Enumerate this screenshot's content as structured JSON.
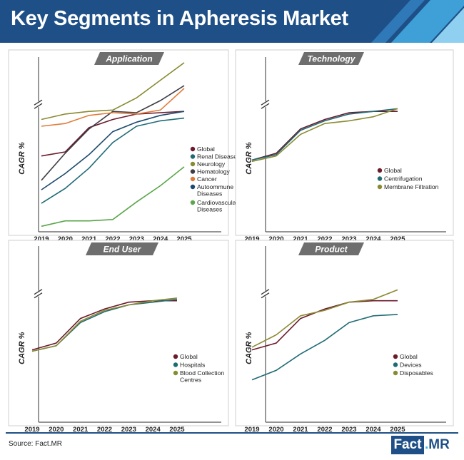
{
  "header": {
    "title": "Key Segments in Apheresis Market"
  },
  "footer": {
    "source": "Source: Fact.MR",
    "logo_left": "Fact",
    "logo_dot": ".",
    "logo_right": "MR"
  },
  "colors": {
    "header_bg": "#1e4f86",
    "accent_light": "#3bb4e6"
  },
  "chart_data": [
    {
      "type": "line",
      "title": "Application",
      "ylabel": "CAGR %",
      "x": [
        "2019",
        "2020",
        "2021",
        "2022",
        "2023",
        "2024",
        "2025"
      ],
      "y_axis_break": true,
      "legend_position": "right",
      "series": [
        {
          "name": "Global",
          "color": "#6b1a2c",
          "values": [
            55,
            58,
            76,
            82,
            86,
            87,
            88
          ]
        },
        {
          "name": "Renal Diseases",
          "color": "#1f6b75",
          "values": [
            20,
            31,
            46,
            65,
            77,
            81,
            83
          ]
        },
        {
          "name": "Neurology",
          "color": "#8a8a32",
          "values": [
            82,
            86,
            88,
            89,
            98,
            111,
            124
          ]
        },
        {
          "name": "Hematology",
          "color": "#3d3d45",
          "values": [
            37,
            57,
            75,
            88,
            87,
            96,
            107
          ]
        },
        {
          "name": "Cancer",
          "color": "#e07b39",
          "values": [
            77,
            79,
            85,
            87,
            86,
            89,
            105
          ]
        },
        {
          "name": "Autoommune Diseases",
          "color": "#1c4a6e",
          "values": [
            30,
            42,
            56,
            73,
            80,
            85,
            88
          ]
        },
        {
          "name": "Cardiovascular Diseases",
          "color": "#5aa64a",
          "values": [
            3,
            7,
            7,
            8,
            21,
            33,
            47
          ]
        }
      ]
    },
    {
      "type": "line",
      "title": "Technology",
      "ylabel": "CAGR %",
      "x": [
        "2019",
        "2020",
        "2021",
        "2022",
        "2023",
        "2024",
        "2025"
      ],
      "y_axis_break": true,
      "legend_position": "bottom-right",
      "series": [
        {
          "name": "Global",
          "color": "#6b1a2c",
          "values": [
            52,
            57,
            75,
            82,
            87,
            88,
            88
          ]
        },
        {
          "name": "Centrifugation",
          "color": "#1f6b75",
          "values": [
            52,
            56,
            74,
            81,
            86,
            88,
            90
          ]
        },
        {
          "name": "Membrane Filtration",
          "color": "#8a8a32",
          "values": [
            51,
            55,
            71,
            79,
            81,
            84,
            90
          ]
        }
      ]
    },
    {
      "type": "line",
      "title": "End User",
      "ylabel": "CAGR %",
      "x": [
        "2019",
        "2020",
        "2021",
        "2022",
        "2023",
        "2024",
        "2025"
      ],
      "y_axis_break": true,
      "legend_position": "bottom-right",
      "series": [
        {
          "name": "Global",
          "color": "#6b1a2c",
          "values": [
            52,
            57,
            75,
            82,
            87,
            88,
            88
          ]
        },
        {
          "name": "Hospitals",
          "color": "#1f6b75",
          "values": [
            51,
            55,
            72,
            80,
            85,
            87,
            89
          ]
        },
        {
          "name": "Blood Collection Centres",
          "color": "#8a8a32",
          "values": [
            51,
            55,
            73,
            81,
            85,
            88,
            90
          ]
        }
      ]
    },
    {
      "type": "line",
      "title": "Product",
      "ylabel": "CAGR %",
      "x": [
        "2019",
        "2020",
        "2021",
        "2022",
        "2023",
        "2024",
        "2025"
      ],
      "y_axis_break": true,
      "legend_position": "bottom-right",
      "series": [
        {
          "name": "Global",
          "color": "#6b1a2c",
          "values": [
            52,
            57,
            75,
            82,
            87,
            88,
            88
          ]
        },
        {
          "name": "Devices",
          "color": "#1f6b75",
          "values": [
            30,
            37,
            49,
            59,
            72,
            77,
            78
          ]
        },
        {
          "name": "Disposables",
          "color": "#8a8a32",
          "values": [
            54,
            63,
            77,
            81,
            87,
            89,
            96
          ]
        }
      ]
    }
  ]
}
